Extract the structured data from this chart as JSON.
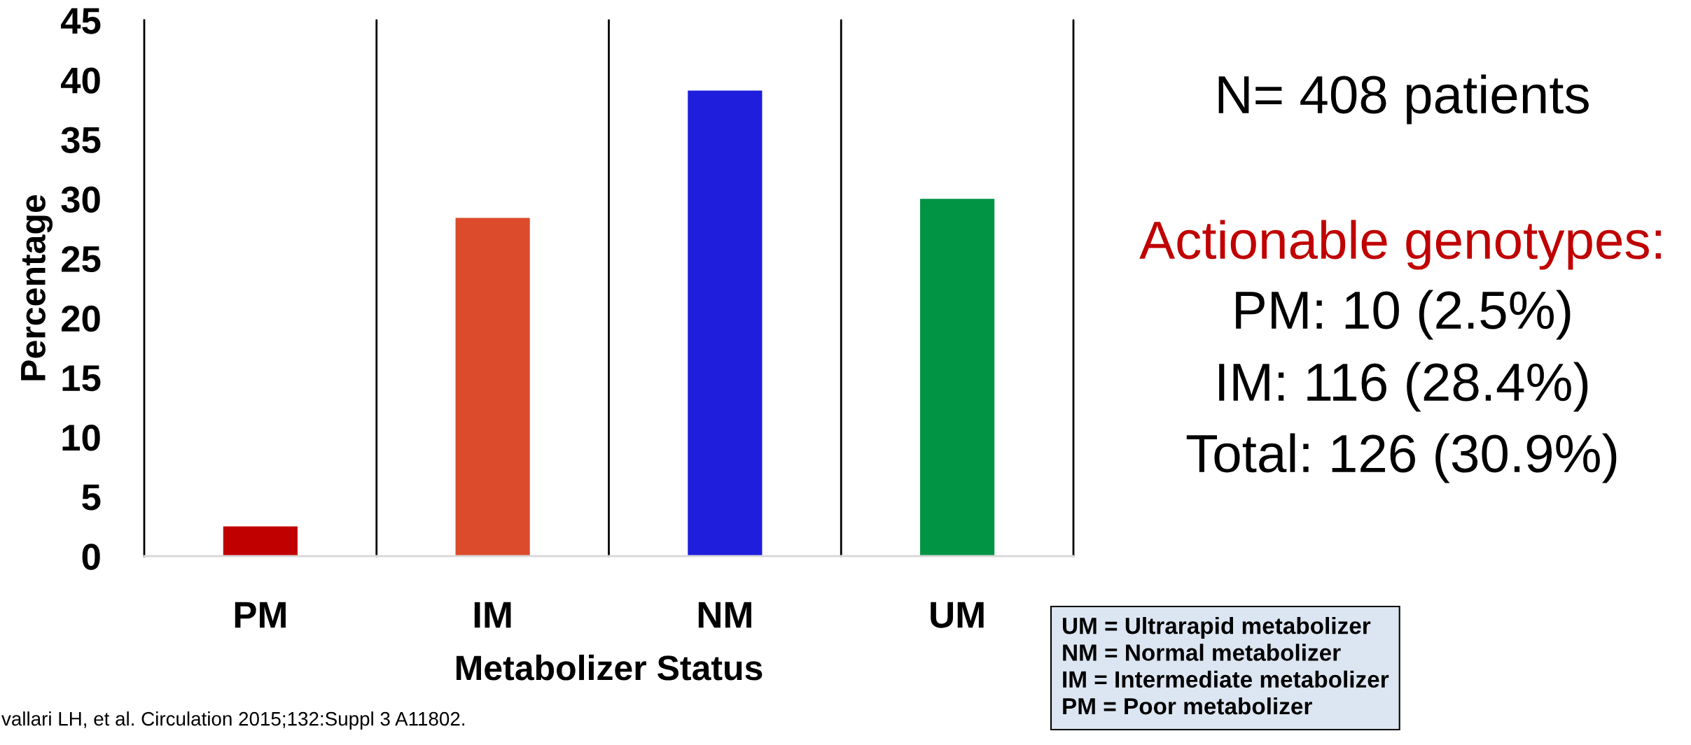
{
  "chart_data": {
    "type": "bar",
    "categories": [
      "PM",
      "IM",
      "NM",
      "UM"
    ],
    "values": [
      2.5,
      28.4,
      39.1,
      30.0
    ],
    "colors": [
      "#c00000",
      "#dc4b2b",
      "#1e1edc",
      "#009444"
    ],
    "xlabel": "Metabolizer Status",
    "ylabel": "Percentage",
    "ylim": [
      0,
      45
    ],
    "yticks": [
      0,
      5,
      10,
      15,
      20,
      25,
      30,
      35,
      40,
      45
    ],
    "grid": "x",
    "annotations": [
      "N= 408 patients",
      "Actionable genotypes:",
      "PM: 10 (2.5%)",
      "IM: 116 (28.4%)",
      "Total: 126 (30.9%)",
      "UM = Ultrarapid metabolizer\nNM = Normal metabolizer\nIM = Intermediate metabolizer\nPM = Poor metabolizer",
      "vallari LH, et al. Circulation 2015;132:Suppl 3 A11802."
    ]
  }
}
